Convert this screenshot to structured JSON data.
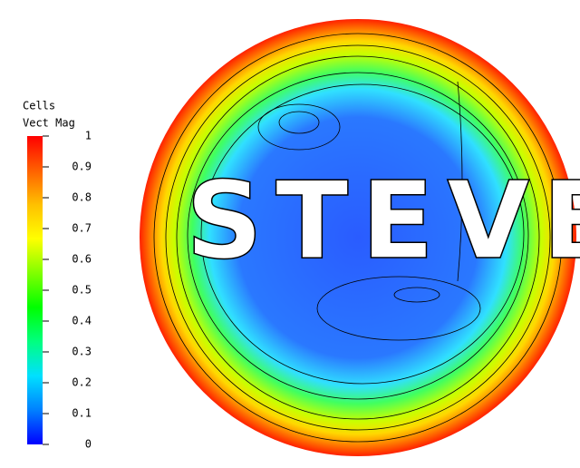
{
  "chart_data": {
    "type": "contour",
    "colorbar_title": [
      "Cells",
      "Vect Mag"
    ],
    "annotation": "STEVE",
    "clim": [
      0,
      1
    ],
    "cticks": [
      0,
      0.1,
      0.2,
      0.3,
      0.4,
      0.5,
      0.6,
      0.7,
      0.8,
      0.9,
      1
    ],
    "colormap": [
      "#0000ff",
      "#0080ff",
      "#00e0ff",
      "#00ff80",
      "#00ff00",
      "#80ff00",
      "#ffff00",
      "#ffc000",
      "#ff6000",
      "#ff0000"
    ]
  }
}
